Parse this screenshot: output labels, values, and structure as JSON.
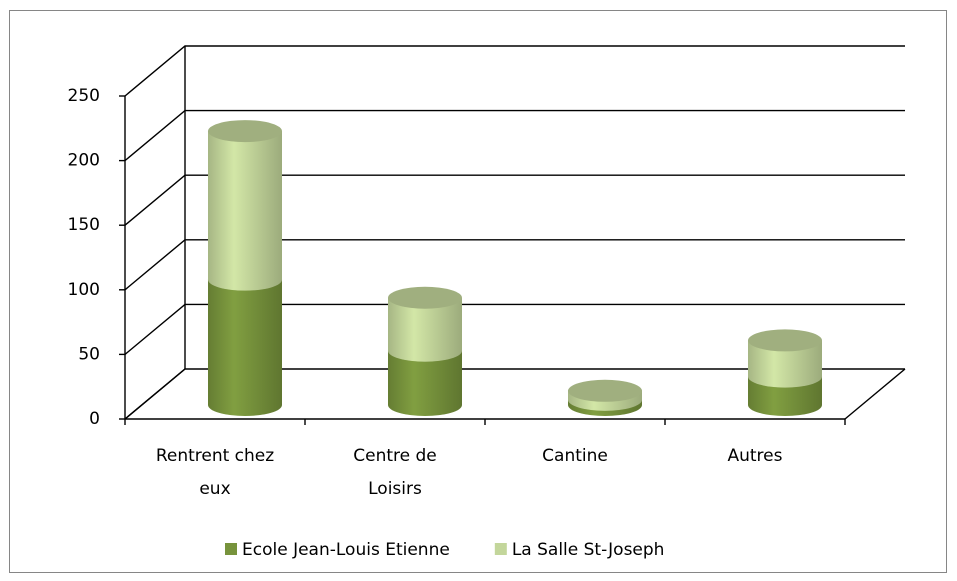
{
  "chart_data": {
    "type": "bar3d_stacked_cylinder",
    "categories": [
      "Rentrent chez eux",
      "Centre de Loisirs",
      "Cantine",
      "Autres"
    ],
    "series": [
      {
        "name": "Ecole Jean-Louis Etienne",
        "color": "#77933c",
        "values": [
          97,
          42,
          4,
          22
        ]
      },
      {
        "name": "La Salle St-Joseph",
        "color": "#c3d69b",
        "values": [
          115,
          41,
          7,
          28
        ]
      }
    ],
    "ylim": [
      0,
      250
    ],
    "yticks": [
      0,
      50,
      100,
      150,
      200,
      250
    ],
    "grid": true,
    "legend": "bottom"
  }
}
